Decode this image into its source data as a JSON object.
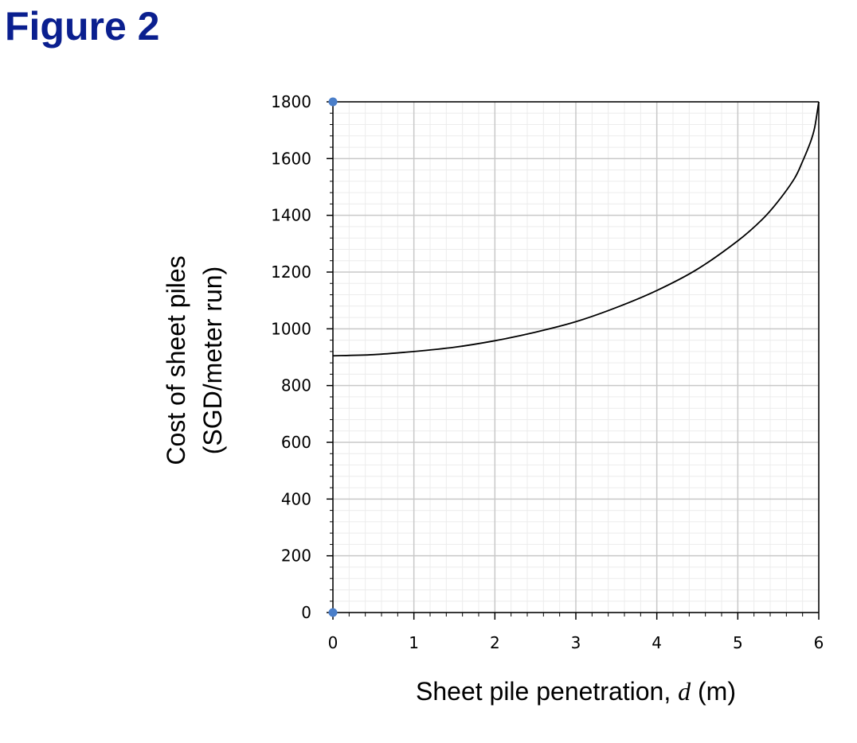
{
  "figure_label": "Figure 2",
  "chart_data": {
    "type": "line",
    "title": "",
    "xlabel_prefix": "Sheet pile penetration, ",
    "xlabel_var": "d",
    "xlabel_suffix": " (m)",
    "ylabel_line1": "Cost of sheet piles",
    "ylabel_line2": "(SGD/meter run)",
    "xlim": [
      0,
      6
    ],
    "ylim": [
      0,
      1800
    ],
    "x_ticks": [
      0,
      1,
      2,
      3,
      4,
      5,
      6
    ],
    "x_tick_labels": [
      "0",
      "1",
      "2",
      "3",
      "4",
      "5",
      "6"
    ],
    "y_ticks": [
      0,
      200,
      400,
      600,
      800,
      1000,
      1200,
      1400,
      1600,
      1800
    ],
    "y_tick_labels": [
      "0",
      "200",
      "400",
      "600",
      "800",
      "1000",
      "1200",
      "1400",
      "1600",
      "1800"
    ],
    "grid": true,
    "minor_divisions": 5,
    "series": [
      {
        "color": "#000000",
        "x": [
          0,
          0.5,
          1,
          1.5,
          2,
          2.5,
          3,
          3.5,
          4,
          4.5,
          5,
          5.3,
          5.5,
          5.7,
          5.8,
          5.9,
          5.95,
          6
        ],
        "y": [
          905,
          909,
          920,
          935,
          958,
          988,
          1025,
          1075,
          1135,
          1210,
          1310,
          1385,
          1450,
          1530,
          1590,
          1660,
          1710,
          1800
        ]
      }
    ],
    "markers": [
      {
        "x": 0,
        "y": 0,
        "color": "#4a7ec9"
      },
      {
        "x": 0,
        "y": 1800,
        "color": "#4a7ec9"
      }
    ]
  }
}
